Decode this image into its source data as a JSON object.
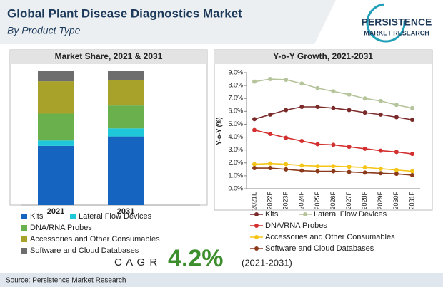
{
  "header": {
    "title": "Global Plant Disease Diagnostics Market",
    "subtitle": "By Product Type",
    "logo_line1": "PERSISTENCE",
    "logo_line2": "MARKET RESEARCH"
  },
  "chart_data": [
    {
      "type": "stacked-bar",
      "title": "Market Share, 2021 & 2031",
      "categories": [
        "2021",
        "2031"
      ],
      "series": [
        {
          "name": "Kits",
          "color": "#1565c0",
          "values": [
            44,
            51
          ]
        },
        {
          "name": "Lateral Flow Devices",
          "color": "#1ec8d8",
          "values": [
            4,
            6
          ]
        },
        {
          "name": "DNA/RNA Probes",
          "color": "#6ab04c",
          "values": [
            20,
            17
          ]
        },
        {
          "name": "Accessories and Other Consumables",
          "color": "#a8a22a",
          "values": [
            24,
            19
          ]
        },
        {
          "name": "Software and Cloud Databases",
          "color": "#6d6d6d",
          "values": [
            8,
            7
          ]
        }
      ]
    },
    {
      "type": "line",
      "title": "Y-o-Y Growth, 2021-2031",
      "y_label": "Y-o-Y (%)",
      "categories": [
        "2021E",
        "2022F",
        "2023F",
        "2024F",
        "2025F",
        "2026F",
        "2027F",
        "2028F",
        "2029F",
        "2030F",
        "2031F"
      ],
      "ylim": [
        0,
        9
      ],
      "yticks": [
        {
          "value": 0,
          "label": "0.0%"
        },
        {
          "value": 1,
          "label": "1.0%"
        },
        {
          "value": 2,
          "label": "2.0%"
        },
        {
          "value": 3,
          "label": "3.0%"
        },
        {
          "value": 4,
          "label": "4.0%"
        },
        {
          "value": 5,
          "label": "5.0%"
        },
        {
          "value": 6,
          "label": "6.0%"
        },
        {
          "value": 7,
          "label": "7.0%"
        },
        {
          "value": 8,
          "label": "8.0%"
        },
        {
          "value": 9,
          "label": "9.0%"
        }
      ],
      "series": [
        {
          "name": "Kits",
          "color": "#7b2a2a",
          "values": [
            5.4,
            5.75,
            6.1,
            6.35,
            6.35,
            6.25,
            6.1,
            5.9,
            5.75,
            5.55,
            5.35
          ]
        },
        {
          "name": "Lateral Flow Devices",
          "color": "#b5c49a",
          "values": [
            8.3,
            8.5,
            8.45,
            8.15,
            7.8,
            7.55,
            7.3,
            7.0,
            6.8,
            6.5,
            6.25
          ]
        },
        {
          "name": "DNA/RNA Probes",
          "color": "#d32f2f",
          "values": [
            4.55,
            4.25,
            3.95,
            3.7,
            3.45,
            3.4,
            3.25,
            3.1,
            2.95,
            2.85,
            2.7
          ]
        },
        {
          "name": "Accessories and Other Consumables",
          "color": "#f5c518",
          "values": [
            1.9,
            1.95,
            1.9,
            1.8,
            1.75,
            1.75,
            1.7,
            1.65,
            1.55,
            1.45,
            1.35
          ]
        },
        {
          "name": "Software and Cloud Databases",
          "color": "#8b3a1a",
          "values": [
            1.6,
            1.6,
            1.5,
            1.4,
            1.35,
            1.35,
            1.3,
            1.25,
            1.2,
            1.15,
            1.05
          ]
        }
      ]
    }
  ],
  "cagr": {
    "label": "C A G R",
    "value": "4.2%",
    "period": "(2021-2031)"
  },
  "source": "Source: Persistence Market Research"
}
